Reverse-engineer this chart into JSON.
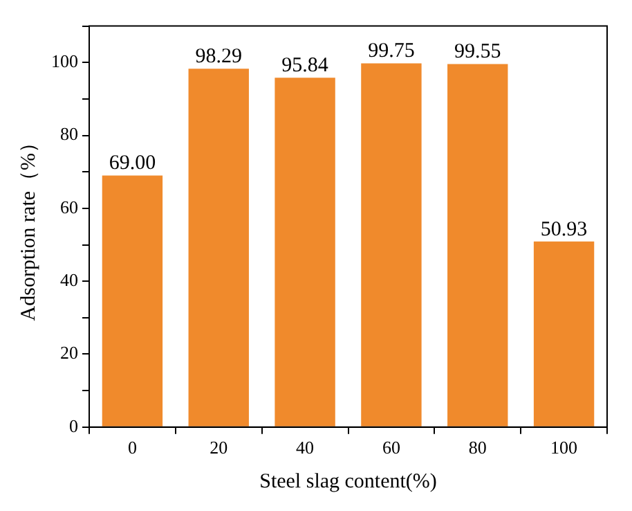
{
  "chart_data": {
    "type": "bar",
    "xlabel": "Steel slag content(%)",
    "ylabel": "Adsorption rate（%）",
    "categories": [
      "0",
      "20",
      "40",
      "60",
      "80",
      "100"
    ],
    "values": [
      69.0,
      98.29,
      95.84,
      99.75,
      99.55,
      50.93
    ],
    "value_labels": [
      "69.00",
      "98.29",
      "95.84",
      "99.75",
      "99.55",
      "50.93"
    ],
    "color": "#f08a2c",
    "ylim": [
      0,
      110
    ],
    "yticks": [
      0,
      {
        "value": 10,
        "label": null
      },
      20,
      {
        "value": 30,
        "label": null
      },
      40,
      {
        "value": 50,
        "label": null
      },
      60,
      {
        "value": 70,
        "label": null
      },
      80,
      {
        "value": 90,
        "label": null
      },
      100,
      {
        "value": 110,
        "label": null
      }
    ],
    "grid": false,
    "legend": false
  }
}
